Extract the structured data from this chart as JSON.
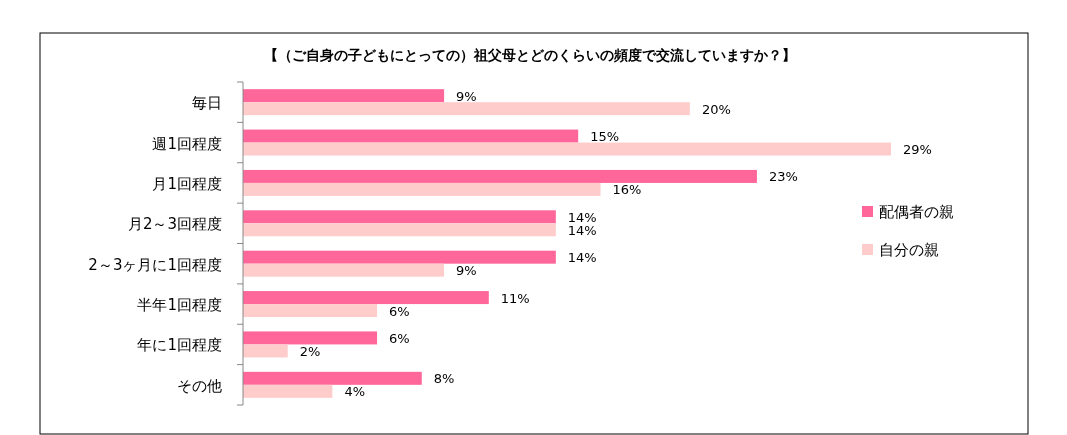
{
  "chart_data": {
    "type": "bar",
    "orientation": "horizontal",
    "title": "【（ご自身の子どもにとっての）祖父母とどのくらいの頻度で交流していますか？】",
    "categories": [
      "毎日",
      "週1回程度",
      "月1回程度",
      "月2～3回程度",
      "2～3ヶ月に1回程度",
      "半年1回程度",
      "年に1回程度",
      "その他"
    ],
    "series": [
      {
        "name": "配偶者の親",
        "color": "#ff6699",
        "values": [
          9,
          15,
          23,
          14,
          14,
          11,
          6,
          8
        ],
        "value_labels": [
          "9%",
          "15%",
          "23%",
          "14%",
          "14%",
          "11%",
          "6%",
          "8%"
        ]
      },
      {
        "name": "自分の親",
        "color": "#ffcccc",
        "values": [
          20,
          29,
          16,
          14,
          9,
          6,
          2,
          4
        ],
        "value_labels": [
          "20%",
          "29%",
          "16%",
          "14%",
          "9%",
          "6%",
          "2%",
          "4%"
        ]
      }
    ],
    "legend": "right",
    "grid": false
  }
}
